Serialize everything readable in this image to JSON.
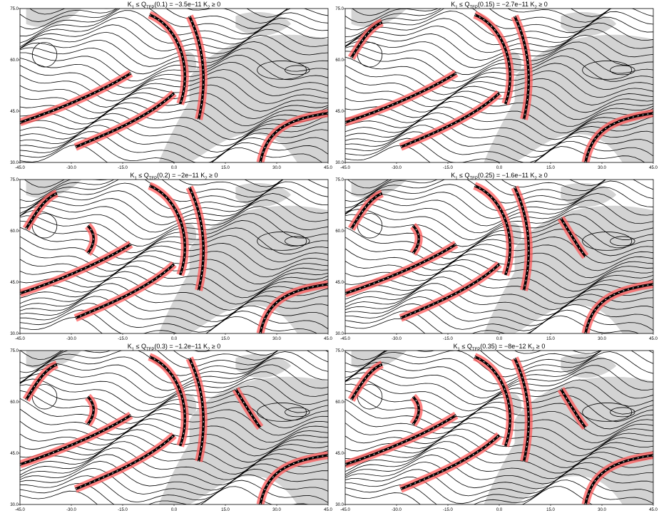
{
  "chart_data": [
    {
      "type": "map",
      "title_parts": [
        "K",
        "1",
        " ≤ Q",
        "TFP",
        "(0.1) = −3.5e−11  K",
        "2",
        " ≥ 0"
      ],
      "xlim": [
        -45,
        45
      ],
      "ylim": [
        30,
        75
      ],
      "xticks": [
        {
          "value": -45,
          "label": "-45.0"
        },
        {
          "value": -30,
          "label": "-30.0"
        },
        {
          "value": -15,
          "label": "-15.0"
        },
        {
          "value": 0,
          "label": "0.0"
        },
        {
          "value": 15,
          "label": "15.0"
        },
        {
          "value": 30,
          "label": "30.0"
        },
        {
          "value": 45,
          "label": "45.0"
        }
      ],
      "yticks": [
        {
          "value": 30,
          "label": "30.0"
        },
        {
          "value": 45,
          "label": "45.0"
        },
        {
          "value": 60,
          "label": "60.0"
        },
        {
          "value": 75,
          "label": "75.0"
        }
      ]
    },
    {
      "type": "map",
      "title_parts": [
        "K",
        "1",
        " ≤ Q",
        "TFP",
        "(0.15) = −2.7e−11  K",
        "2",
        " ≥ 0"
      ],
      "xlim": [
        -45,
        45
      ],
      "ylim": [
        30,
        75
      ],
      "xticks": [
        {
          "value": -45,
          "label": "-45.0"
        },
        {
          "value": -30,
          "label": "-30.0"
        },
        {
          "value": -15,
          "label": "-15.0"
        },
        {
          "value": 0,
          "label": "0.0"
        },
        {
          "value": 15,
          "label": "15.0"
        },
        {
          "value": 30,
          "label": "30.0"
        },
        {
          "value": 45,
          "label": "45.0"
        }
      ],
      "yticks": [
        {
          "value": 30,
          "label": "30.0"
        },
        {
          "value": 45,
          "label": "45.0"
        },
        {
          "value": 60,
          "label": "60.0"
        },
        {
          "value": 75,
          "label": "75.0"
        }
      ]
    },
    {
      "type": "map",
      "title_parts": [
        "K",
        "1",
        " ≤ Q",
        "TFP",
        "(0.2) = −2e−11  K",
        "2",
        " ≥ 0"
      ],
      "xlim": [
        -45,
        45
      ],
      "ylim": [
        30,
        75
      ],
      "xticks": [
        {
          "value": -45,
          "label": "-45.0"
        },
        {
          "value": -30,
          "label": "-30.0"
        },
        {
          "value": -15,
          "label": "-15.0"
        },
        {
          "value": 0,
          "label": "0.0"
        },
        {
          "value": 15,
          "label": "15.0"
        },
        {
          "value": 30,
          "label": "30.0"
        },
        {
          "value": 45,
          "label": "45.0"
        }
      ],
      "yticks": [
        {
          "value": 30,
          "label": "30.0"
        },
        {
          "value": 45,
          "label": "45.0"
        },
        {
          "value": 60,
          "label": "60.0"
        },
        {
          "value": 75,
          "label": "75.0"
        }
      ]
    },
    {
      "type": "map",
      "title_parts": [
        "K",
        "1",
        " ≤ Q",
        "TFP",
        "(0.25) = −1.6e−11  K",
        "2",
        " ≥ 0"
      ],
      "xlim": [
        -45,
        45
      ],
      "ylim": [
        30,
        75
      ],
      "xticks": [
        {
          "value": -45,
          "label": "-45.0"
        },
        {
          "value": -30,
          "label": "-30.0"
        },
        {
          "value": -15,
          "label": "-15.0"
        },
        {
          "value": 0,
          "label": "0.0"
        },
        {
          "value": 15,
          "label": "15.0"
        },
        {
          "value": 30,
          "label": "30.0"
        },
        {
          "value": 45,
          "label": "45.0"
        }
      ],
      "yticks": [
        {
          "value": 30,
          "label": "30.0"
        },
        {
          "value": 45,
          "label": "45.0"
        },
        {
          "value": 60,
          "label": "60.0"
        },
        {
          "value": 75,
          "label": "75.0"
        }
      ]
    },
    {
      "type": "map",
      "title_parts": [
        "K",
        "1",
        " ≤ Q",
        "TFP",
        "(0.3) = −1.2e−11  K",
        "2",
        " ≥ 0"
      ],
      "xlim": [
        -45,
        45
      ],
      "ylim": [
        30,
        75
      ],
      "xticks": [
        {
          "value": -45,
          "label": "-45.0"
        },
        {
          "value": -30,
          "label": "-30.0"
        },
        {
          "value": -15,
          "label": "-15.0"
        },
        {
          "value": 0,
          "label": "0.0"
        },
        {
          "value": 15,
          "label": "15.0"
        },
        {
          "value": 30,
          "label": "30.0"
        },
        {
          "value": 45,
          "label": "45.0"
        }
      ],
      "yticks": [
        {
          "value": 30,
          "label": "30.0"
        },
        {
          "value": 45,
          "label": "45.0"
        },
        {
          "value": 60,
          "label": "60.0"
        },
        {
          "value": 75,
          "label": "75.0"
        }
      ]
    },
    {
      "type": "map",
      "title_parts": [
        "K",
        "1",
        " ≤ Q",
        "TFP",
        "(0.35) = −8e−12  K",
        "2",
        " ≥ 0"
      ],
      "xlim": [
        -45,
        45
      ],
      "ylim": [
        30,
        75
      ],
      "xticks": [
        {
          "value": -45,
          "label": "-45.0"
        },
        {
          "value": -30,
          "label": "-30.0"
        },
        {
          "value": -15,
          "label": "-15.0"
        },
        {
          "value": 0,
          "label": "0.0"
        },
        {
          "value": 15,
          "label": "15.0"
        },
        {
          "value": 30,
          "label": "30.0"
        },
        {
          "value": 45,
          "label": "45.0"
        }
      ],
      "yticks": [
        {
          "value": 30,
          "label": "30.0"
        },
        {
          "value": 45,
          "label": "45.0"
        },
        {
          "value": 60,
          "label": "60.0"
        },
        {
          "value": 75,
          "label": "75.0"
        }
      ]
    }
  ]
}
